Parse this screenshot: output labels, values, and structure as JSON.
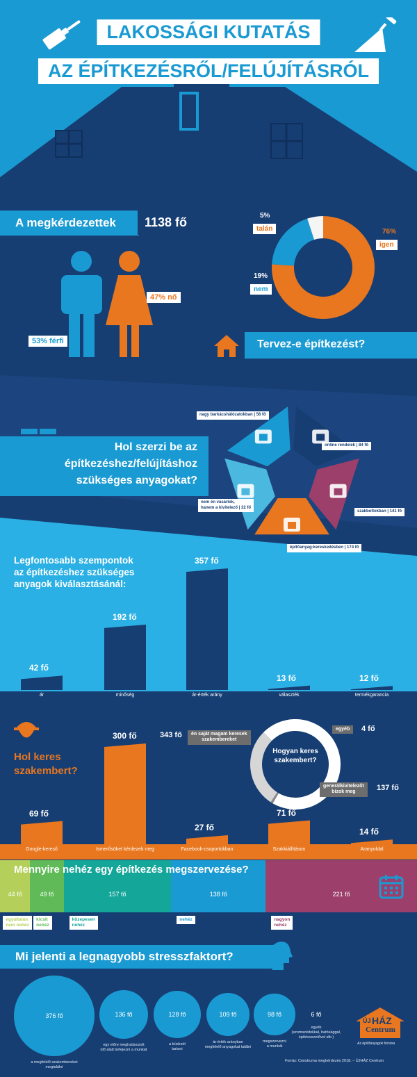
{
  "header": {
    "line1": "LAKOSSÁGI KUTATÁS",
    "line2": "AZ ÉPÍTKEZÉSRŐL/FELÚJÍTÁSRÓL"
  },
  "respondents": {
    "label": "A megkérdezettek",
    "count": "1138 fő",
    "male": "53% férfi",
    "female": "47% nő"
  },
  "plan": {
    "question": "Tervez-e építkezést?",
    "slices": [
      {
        "pct": "76%",
        "label": "igen",
        "value": 76,
        "color": "#e8771f"
      },
      {
        "pct": "19%",
        "label": "nem",
        "value": 19,
        "color": "#1a9ad2"
      },
      {
        "pct": "5%",
        "label": "talán",
        "value": 5,
        "color": "#f5f5f5"
      }
    ]
  },
  "materials": {
    "question_l1": "Hol szerzi be az",
    "question_l2": "építkezéshez/felújításhoz",
    "question_l3": "szükséges anyagokat?",
    "items": [
      {
        "label": "nagy barkácshálózatokban | 56 fő",
        "icon": "building-icon",
        "color": "#1a9ad2"
      },
      {
        "label": "online rendelek | 84 fő",
        "icon": "laptop-cart-icon",
        "color": "#173e73"
      },
      {
        "label": "szakboltokban | 141 fő",
        "icon": "tools-icon",
        "color": "#9c3f6b"
      },
      {
        "label": "építőanyag-kereskedésben | 174 fő",
        "icon": "store-icon",
        "color": "#e8771f"
      },
      {
        "label_l1": "nem én vásárlok,",
        "label_l2": "hanem a kivitelező | 32 fő",
        "icon": "worker-icon",
        "color": "#4bb8e0"
      }
    ]
  },
  "criteria": {
    "title_l1": "Legfontosabb szempontok",
    "title_l2": "az építkezéshez szükséges",
    "title_l3": "anyagok kiválasztásánál:",
    "chart_data": {
      "type": "bar",
      "categories": [
        "ár",
        "minőség",
        "ár-érték arány",
        "választék",
        "termékgarancia"
      ],
      "values": [
        42,
        192,
        357,
        13,
        12
      ],
      "value_labels": [
        "42 fő",
        "192 fő",
        "357 fő",
        "13 fő",
        "12 fő"
      ],
      "ylim": [
        0,
        357
      ]
    }
  },
  "expert": {
    "title_l1": "Hol keres",
    "title_l2": "szakembert?",
    "chart_data": {
      "type": "bar",
      "categories": [
        "Google-kereső",
        "Ismerősöket kérdezek meg",
        "Facebook-csoportokban",
        "Szakkiállításon",
        "Aranyoldal"
      ],
      "values": [
        69,
        300,
        27,
        71,
        14
      ],
      "value_labels": [
        "69 fő",
        "300 fő",
        "27 fő",
        "71 fő",
        "14 fő"
      ],
      "ylim": [
        0,
        300
      ]
    },
    "donut": {
      "title_l1": "Hogyan keres",
      "title_l2": "szakembert?",
      "slices": [
        {
          "label_l1": "én saját magam keresek",
          "label_l2": "szakembereket",
          "value_label": "343 fő",
          "value": 343,
          "color": "#ffffff"
        },
        {
          "label_l1": "egyéb",
          "label_l2": "",
          "value_label": "4 fő",
          "value": 4,
          "color": "#8a8a8a"
        },
        {
          "label_l1": "generálkivitelezőt",
          "label_l2": "bízok meg",
          "value_label": "137 fő",
          "value": 137,
          "color": "#d6d6d6"
        }
      ]
    }
  },
  "difficulty": {
    "question": "Mennyire nehéz egy építkezés megszervezése?",
    "segments": [
      {
        "value": "44 fő",
        "n": 44,
        "cap_l1": "egyáltalán",
        "cap_l2": "nem nehéz",
        "color": "#b5d05a"
      },
      {
        "value": "49 fő",
        "n": 49,
        "cap_l1": "kicsit",
        "cap_l2": "nehéz",
        "color": "#5fba57"
      },
      {
        "value": "157 fő",
        "n": 157,
        "cap_l1": "közepesen",
        "cap_l2": "nehéz",
        "color": "#15a69a"
      },
      {
        "value": "138 fő",
        "n": 138,
        "cap_l1": "nehéz",
        "cap_l2": "",
        "color": "#1a9ad2"
      },
      {
        "value": "221 fő",
        "n": 221,
        "cap_l1": "nagyon",
        "cap_l2": "nehéz",
        "color": "#9c3f6b"
      }
    ]
  },
  "stress": {
    "question": "Mi jelenti a legnagyobb stresszfaktort?",
    "items": [
      {
        "value": "376 fő",
        "n": 376,
        "cap_l1": "a megfelelő szakembereket",
        "cap_l2": "megtalálni",
        "cap_l3": ""
      },
      {
        "value": "136 fő",
        "n": 136,
        "cap_l1": "egy előre meghatározott",
        "cap_l2": "idő alatt befejezni a munkát",
        "cap_l3": ""
      },
      {
        "value": "128 fő",
        "n": 128,
        "cap_l1": "a büdzsét",
        "cap_l2": "tartani",
        "cap_l3": ""
      },
      {
        "value": "109 fő",
        "n": 109,
        "cap_l1": "ár-érték arányban",
        "cap_l2": "megfelelő anyagokat találni",
        "cap_l3": ""
      },
      {
        "value": "98 fő",
        "n": 98,
        "cap_l1": "megszervezni",
        "cap_l2": "a munkát",
        "cap_l3": ""
      },
      {
        "value": "6 fő",
        "n": 6,
        "cap_l1": "egyéb",
        "cap_l2": "(szomszédokkal, hatósággal,",
        "cap_l3": "építésvezetővel stb.)"
      }
    ]
  },
  "brand": {
    "top": "ÚJ",
    "main": "HÁZ",
    "sub": "Centrum",
    "tagline": "Az építőanyagok forrása"
  },
  "source": "Forrás: Construma megkérdezés 2018. – ÚJHÁZ Centrum"
}
